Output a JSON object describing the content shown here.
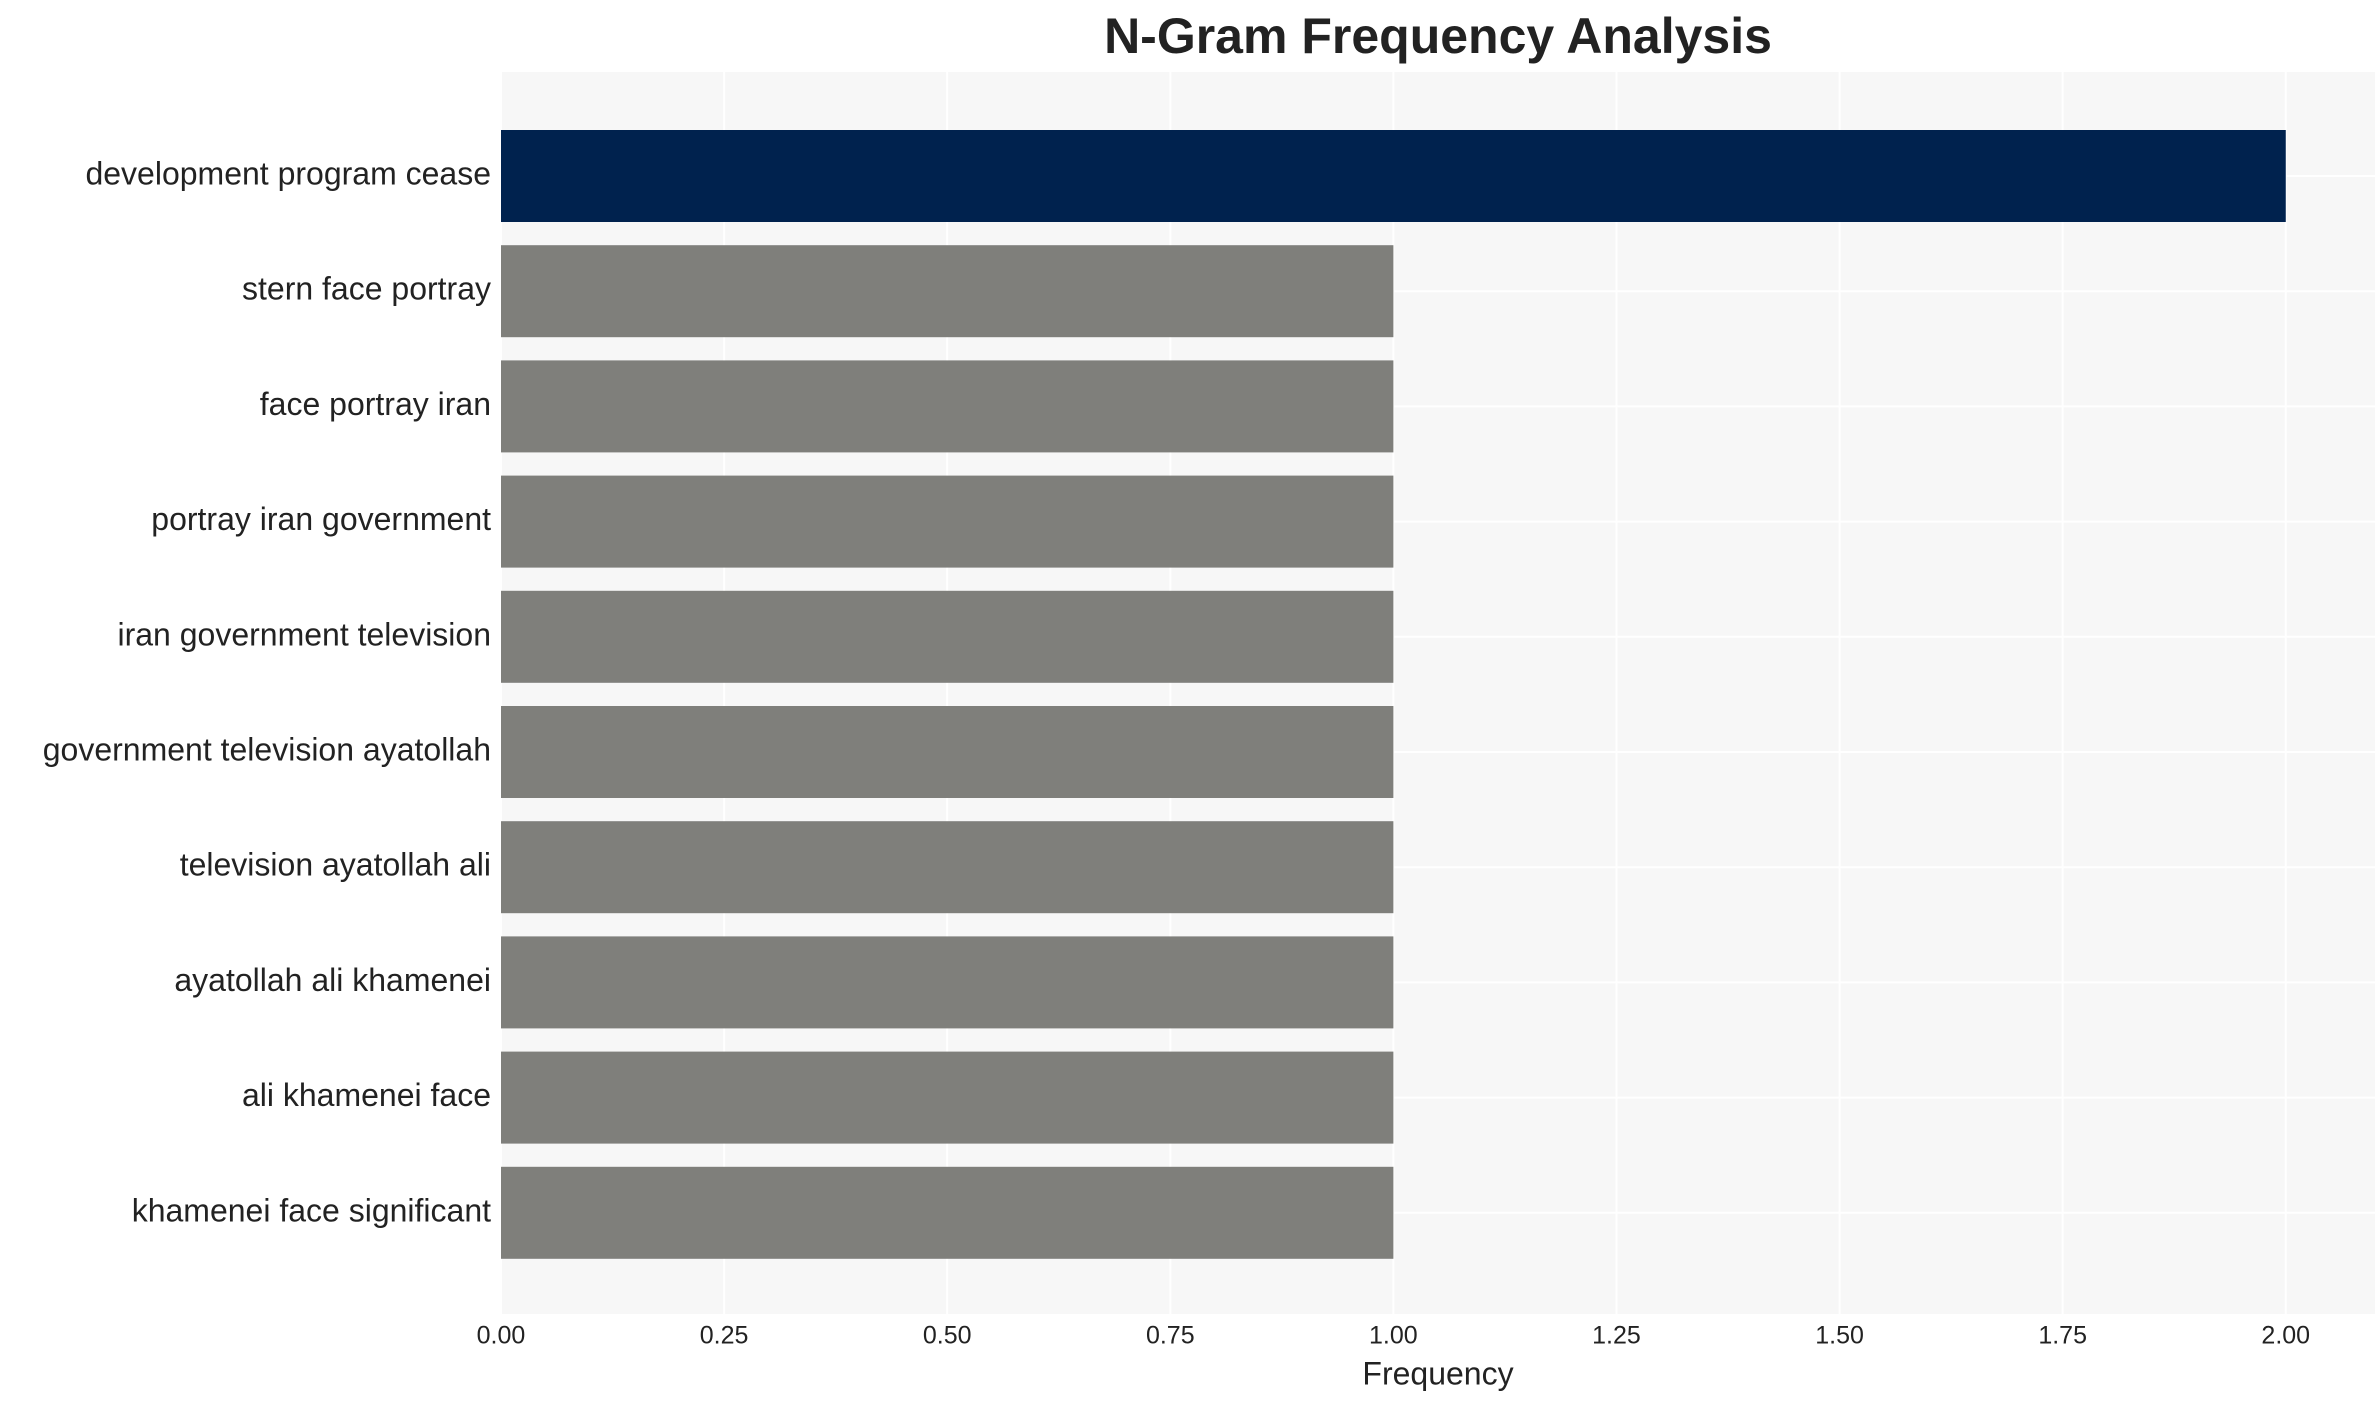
{
  "chart_data": {
    "type": "barh",
    "title": "N-Gram Frequency Analysis",
    "x_label": "Frequency",
    "categories": [
      "development program cease",
      "stern face portray",
      "face portray iran",
      "portray iran government",
      "iran government television",
      "government television ayatollah",
      "television ayatollah ali",
      "ayatollah ali khamenei",
      "ali khamenei face",
      "khamenei face significant"
    ],
    "values": [
      2,
      1,
      1,
      1,
      1,
      1,
      1,
      1,
      1,
      1
    ],
    "colors": [
      "#00224e",
      "#7f7f7b",
      "#7f7f7b",
      "#7f7f7b",
      "#7f7f7b",
      "#7f7f7b",
      "#7f7f7b",
      "#7f7f7b",
      "#7f7f7b",
      "#7f7f7b"
    ],
    "xlim": [
      0,
      2.1
    ],
    "xticks": [
      {
        "value": 0,
        "label": "0.00"
      },
      {
        "value": 0.25,
        "label": "0.25"
      },
      {
        "value": 0.5,
        "label": "0.50"
      },
      {
        "value": 0.75,
        "label": "0.75"
      },
      {
        "value": 1,
        "label": "1.00"
      },
      {
        "value": 1.25,
        "label": "1.25"
      },
      {
        "value": 1.5,
        "label": "1.50"
      },
      {
        "value": 1.75,
        "label": "1.75"
      },
      {
        "value": 2,
        "label": "2.00"
      }
    ],
    "grid": true
  }
}
